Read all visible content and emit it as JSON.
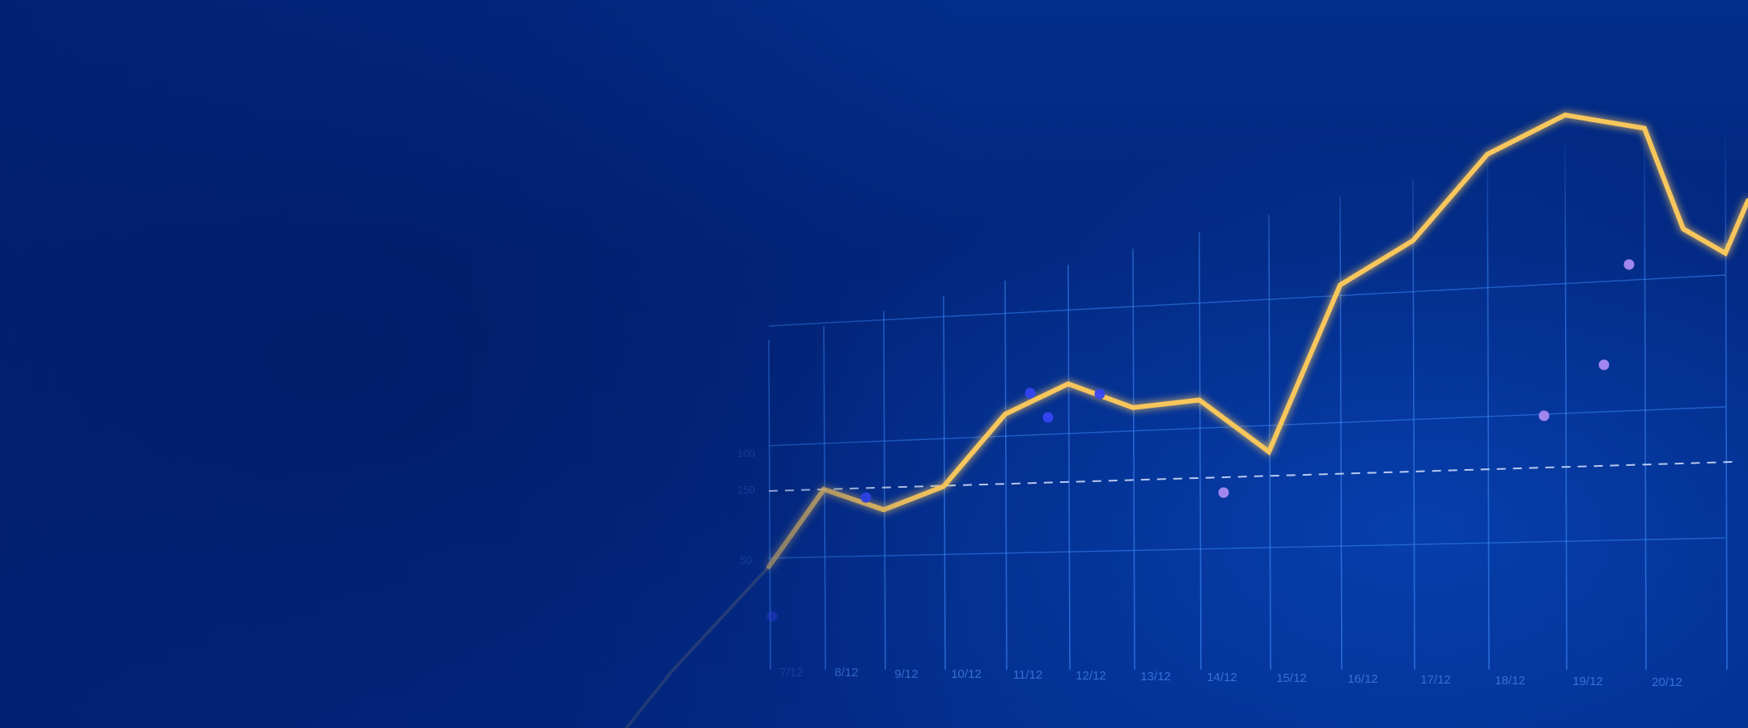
{
  "chart_data": {
    "type": "line",
    "categories": [
      "7/12",
      "8/12",
      "9/12",
      "10/12",
      "11/12",
      "12/12",
      "13/12",
      "14/12",
      "15/12",
      "16/12",
      "17/12",
      "18/12",
      "19/12",
      "20/12"
    ],
    "series": [
      {
        "values": [
          52,
          96,
          84,
          97,
          138,
          155,
          141,
          145,
          115,
          210,
          235,
          284,
          306,
          298
        ]
      }
    ],
    "y_labels": [
      "50",
      "100",
      "150"
    ],
    "reference_line": {
      "value": 150,
      "style": "dashed"
    },
    "scatter_points": [
      {
        "x": "7/12",
        "y": 105
      },
      {
        "x": "9/12",
        "y": 178
      },
      {
        "x": "11/12",
        "y": 236
      },
      {
        "x": "11/12",
        "y": 214
      },
      {
        "x": "12/12",
        "y": 234
      },
      {
        "x": "14/12",
        "y": 162
      },
      {
        "x": "18/12",
        "y": 235
      },
      {
        "x": "19/12",
        "y": 252
      },
      {
        "x": "19/12",
        "y": 298
      }
    ],
    "grid": true,
    "colors": {
      "line": "#f7c65c",
      "point_blue": "#3446f2",
      "point_violet": "#a98bf2",
      "grid": "#3b86f7",
      "background": "#032a84"
    }
  }
}
